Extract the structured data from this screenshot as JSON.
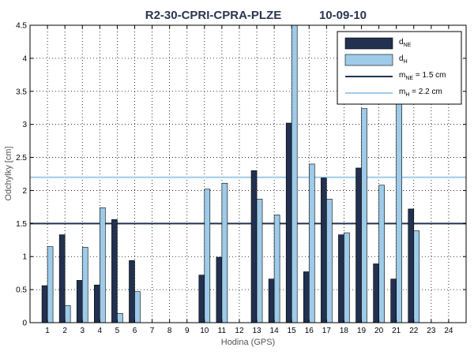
{
  "chart_data": {
    "type": "bar",
    "title": "R2-30-CPRI-CPRA-PLZE",
    "subtitle": "10-09-10",
    "xlabel": "Hodina (GPS)",
    "ylabel": "Odchylky [cm]",
    "ylim": [
      0,
      4.5
    ],
    "yticks": [
      "0",
      "0.5",
      "1",
      "1.5",
      "2",
      "2.5",
      "3",
      "3.5",
      "4",
      "4.5"
    ],
    "categories": [
      "1",
      "2",
      "3",
      "4",
      "5",
      "6",
      "7",
      "8",
      "9",
      "10",
      "11",
      "12",
      "13",
      "14",
      "15",
      "16",
      "17",
      "18",
      "19",
      "20",
      "21",
      "22",
      "23",
      "24"
    ],
    "grid": true,
    "legend_position": "top-right",
    "series": [
      {
        "name": "NE",
        "label_main": "d",
        "label_sub": "NE",
        "color": "#223150",
        "values": [
          0.56,
          1.33,
          0.64,
          0.57,
          1.56,
          0.94,
          null,
          null,
          null,
          0.72,
          0.99,
          null,
          2.3,
          0.66,
          3.02,
          0.77,
          2.19,
          1.33,
          2.34,
          0.89,
          0.66,
          1.72,
          null,
          null
        ]
      },
      {
        "name": "H",
        "label_main": "d",
        "label_sub": "H",
        "color": "#9dcbe9",
        "values": [
          1.15,
          0.26,
          1.14,
          1.74,
          0.14,
          0.47,
          null,
          null,
          null,
          2.02,
          2.11,
          null,
          1.87,
          1.63,
          4.5,
          2.4,
          1.87,
          1.36,
          3.24,
          2.08,
          3.4,
          1.39,
          null,
          null
        ]
      }
    ],
    "reference_lines": [
      {
        "name": "mNE",
        "label_main": "m",
        "label_sub": "NE",
        "label_rest": " = 1.5 cm",
        "value": 1.5,
        "color": "#223150"
      },
      {
        "name": "mH",
        "label_main": "m",
        "label_sub": "H",
        "label_rest": " = 2.2 cm",
        "value": 2.2,
        "color": "#9dcbe9"
      }
    ]
  }
}
